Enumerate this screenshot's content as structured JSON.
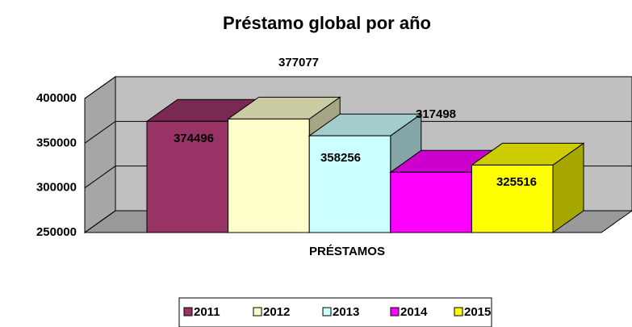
{
  "chart_data": {
    "type": "bar3d",
    "title": "Préstamo global por año",
    "categories": [
      "PRÉSTAMOS"
    ],
    "series": [
      {
        "name": "2011",
        "color": "#993366",
        "values": [
          374496
        ]
      },
      {
        "name": "2012",
        "color": "#ffffcc",
        "values": [
          377077
        ]
      },
      {
        "name": "2013",
        "color": "#ccffff",
        "values": [
          358256
        ]
      },
      {
        "name": "2014",
        "color": "#ff00ff",
        "values": [
          317498
        ]
      },
      {
        "name": "2015",
        "color": "#ffff00",
        "values": [
          325516
        ]
      }
    ],
    "ylim": [
      250000,
      400000
    ],
    "yticks": [
      250000,
      300000,
      350000,
      400000
    ],
    "grid": true,
    "legend": "bottom"
  }
}
